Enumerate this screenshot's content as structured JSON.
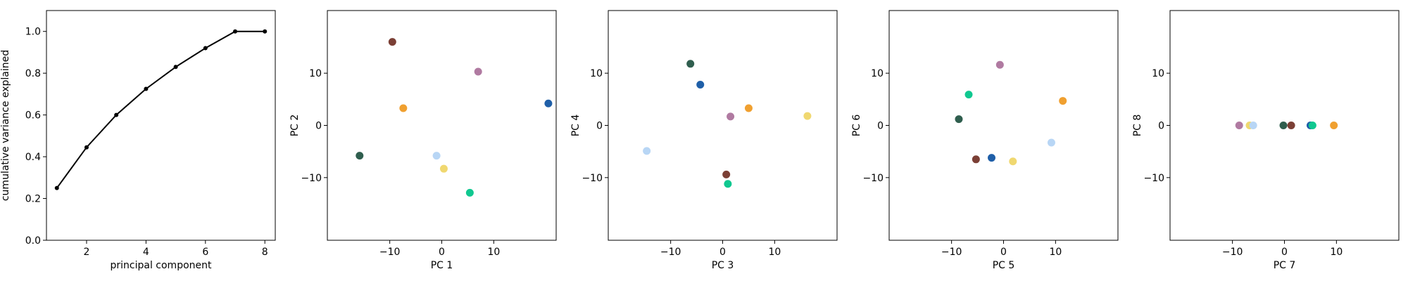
{
  "chart_data": [
    {
      "type": "line",
      "xlabel": "principal component",
      "ylabel": "cumulative variance explained",
      "xlim": [
        0.65,
        8.35
      ],
      "ylim": [
        0,
        1.1
      ],
      "xticks": [
        2,
        4,
        6,
        8
      ],
      "yticks": [
        0.0,
        0.2,
        0.4,
        0.6,
        0.8,
        1.0
      ],
      "xtick_labels": [
        "2",
        "4",
        "6",
        "8"
      ],
      "ytick_labels": [
        "0.0",
        "0.2",
        "0.4",
        "0.6",
        "0.8",
        "1.0"
      ],
      "line_color": "#000000",
      "x": [
        1,
        2,
        3,
        4,
        5,
        6,
        7,
        8
      ],
      "y": [
        0.25,
        0.445,
        0.6,
        0.725,
        0.83,
        0.92,
        1.0,
        1.0
      ]
    },
    {
      "type": "scatter",
      "xlabel": "PC 1",
      "ylabel": "PC 2",
      "xlim": [
        -22,
        22
      ],
      "ylim": [
        -22,
        22
      ],
      "xticks": [
        -10,
        0,
        10
      ],
      "yticks": [
        -10,
        0,
        10
      ],
      "xtick_labels": [
        "−10",
        "0",
        "10"
      ],
      "ytick_labels": [
        "−10",
        "0",
        "10"
      ],
      "points": [
        {
          "x": -9.5,
          "y": 16.0,
          "color": "#7b3f35"
        },
        {
          "x": 7.0,
          "y": 10.3,
          "color": "#b07aa1"
        },
        {
          "x": -7.4,
          "y": 3.3,
          "color": "#f0a030"
        },
        {
          "x": 20.5,
          "y": 4.2,
          "color": "#1f5fa8"
        },
        {
          "x": -15.8,
          "y": -5.8,
          "color": "#2f5e4e"
        },
        {
          "x": -1.0,
          "y": -5.8,
          "color": "#b8d6f5"
        },
        {
          "x": 0.4,
          "y": -8.3,
          "color": "#f0d870"
        },
        {
          "x": 5.4,
          "y": -12.9,
          "color": "#10c890"
        }
      ]
    },
    {
      "type": "scatter",
      "xlabel": "PC 3",
      "ylabel": "PC 4",
      "xlim": [
        -22,
        22
      ],
      "ylim": [
        -22,
        22
      ],
      "xticks": [
        -10,
        0,
        10
      ],
      "yticks": [
        -10,
        0,
        10
      ],
      "xtick_labels": [
        "−10",
        "0",
        "10"
      ],
      "ytick_labels": [
        "−10",
        "0",
        "10"
      ],
      "points": [
        {
          "x": -6.2,
          "y": 11.8,
          "color": "#2f5e4e"
        },
        {
          "x": -4.3,
          "y": 7.8,
          "color": "#1f5fa8"
        },
        {
          "x": 5.0,
          "y": 3.3,
          "color": "#f0a030"
        },
        {
          "x": 1.5,
          "y": 1.7,
          "color": "#b07aa1"
        },
        {
          "x": 16.3,
          "y": 1.8,
          "color": "#f0d870"
        },
        {
          "x": -14.6,
          "y": -4.9,
          "color": "#b8d6f5"
        },
        {
          "x": 0.7,
          "y": -9.4,
          "color": "#7b3f35"
        },
        {
          "x": 1.0,
          "y": -11.2,
          "color": "#10c890"
        }
      ]
    },
    {
      "type": "scatter",
      "xlabel": "PC 5",
      "ylabel": "PC 6",
      "xlim": [
        -22,
        22
      ],
      "ylim": [
        -22,
        22
      ],
      "xticks": [
        -10,
        0,
        10
      ],
      "yticks": [
        -10,
        0,
        10
      ],
      "xtick_labels": [
        "−10",
        "0",
        "10"
      ],
      "ytick_labels": [
        "−10",
        "0",
        "10"
      ],
      "points": [
        {
          "x": -0.7,
          "y": 11.6,
          "color": "#b07aa1"
        },
        {
          "x": -6.7,
          "y": 5.9,
          "color": "#10c890"
        },
        {
          "x": 11.4,
          "y": 4.7,
          "color": "#f0a030"
        },
        {
          "x": -8.6,
          "y": 1.2,
          "color": "#2f5e4e"
        },
        {
          "x": 9.2,
          "y": -3.3,
          "color": "#b8d6f5"
        },
        {
          "x": -5.3,
          "y": -6.5,
          "color": "#7b3f35"
        },
        {
          "x": -2.3,
          "y": -6.2,
          "color": "#1f5fa8"
        },
        {
          "x": 1.8,
          "y": -6.9,
          "color": "#f0d870"
        }
      ]
    },
    {
      "type": "scatter",
      "xlabel": "PC 7",
      "ylabel": "PC 8",
      "xlim": [
        -22,
        22
      ],
      "ylim": [
        -22,
        22
      ],
      "xticks": [
        -10,
        0,
        10
      ],
      "yticks": [
        -10,
        0,
        10
      ],
      "xtick_labels": [
        "−10",
        "0",
        "10"
      ],
      "ytick_labels": [
        "−10",
        "0",
        "10"
      ],
      "points": [
        {
          "x": -8.7,
          "y": 0,
          "color": "#b07aa1"
        },
        {
          "x": -6.7,
          "y": 0,
          "color": "#f0d870"
        },
        {
          "x": -6.0,
          "y": 0,
          "color": "#b8d6f5"
        },
        {
          "x": -0.2,
          "y": 0,
          "color": "#2f5e4e"
        },
        {
          "x": 1.3,
          "y": 0,
          "color": "#7b3f35"
        },
        {
          "x": 5.0,
          "y": 0,
          "color": "#1f5fa8"
        },
        {
          "x": 5.4,
          "y": 0,
          "color": "#10c890"
        },
        {
          "x": 9.5,
          "y": 0,
          "color": "#f0a030"
        }
      ]
    }
  ]
}
